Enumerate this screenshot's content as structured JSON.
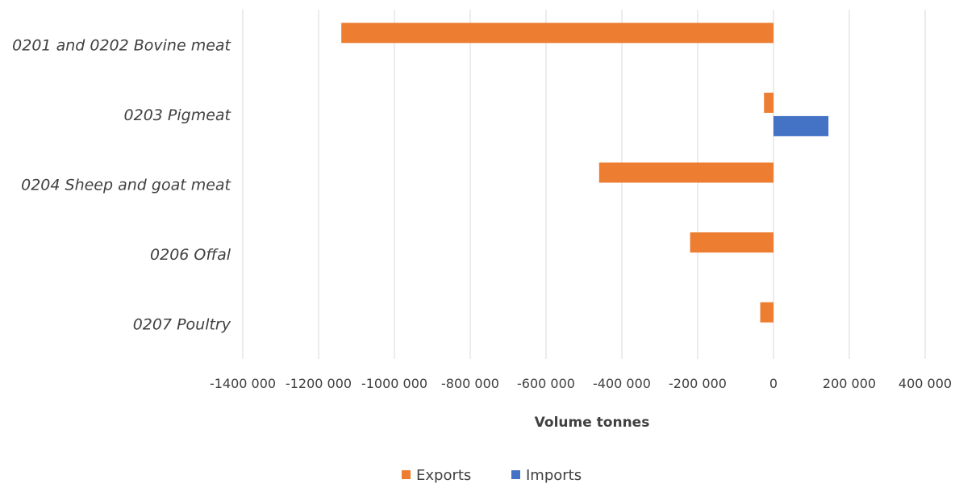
{
  "chart_data": {
    "type": "bar",
    "orientation": "horizontal",
    "categories": [
      "0201 and 0202 Bovine meat",
      "0203 Pigmeat",
      "0204 Sheep and goat meat",
      "0206 Offal",
      "0207 Poultry"
    ],
    "series": [
      {
        "name": "Exports",
        "color": "#ED7D31",
        "values": [
          -1140000,
          -25000,
          -460000,
          -220000,
          -35000
        ]
      },
      {
        "name": "Imports",
        "color": "#4472C4",
        "values": [
          0,
          145000,
          0,
          0,
          0
        ]
      }
    ],
    "xlabel": "Volume tonnes",
    "xlim": [
      -1400000,
      400000
    ],
    "xticks": [
      -1400000,
      -1200000,
      -1000000,
      -800000,
      -600000,
      -400000,
      -200000,
      0,
      200000,
      400000
    ],
    "xtick_labels": [
      "-1400 000",
      "-1200 000",
      "-1000 000",
      "-800 000",
      "-600 000",
      "-400 000",
      "-200 000",
      "0",
      "200 000",
      "400 000"
    ],
    "grid": "vertical",
    "legend": "bottom"
  }
}
